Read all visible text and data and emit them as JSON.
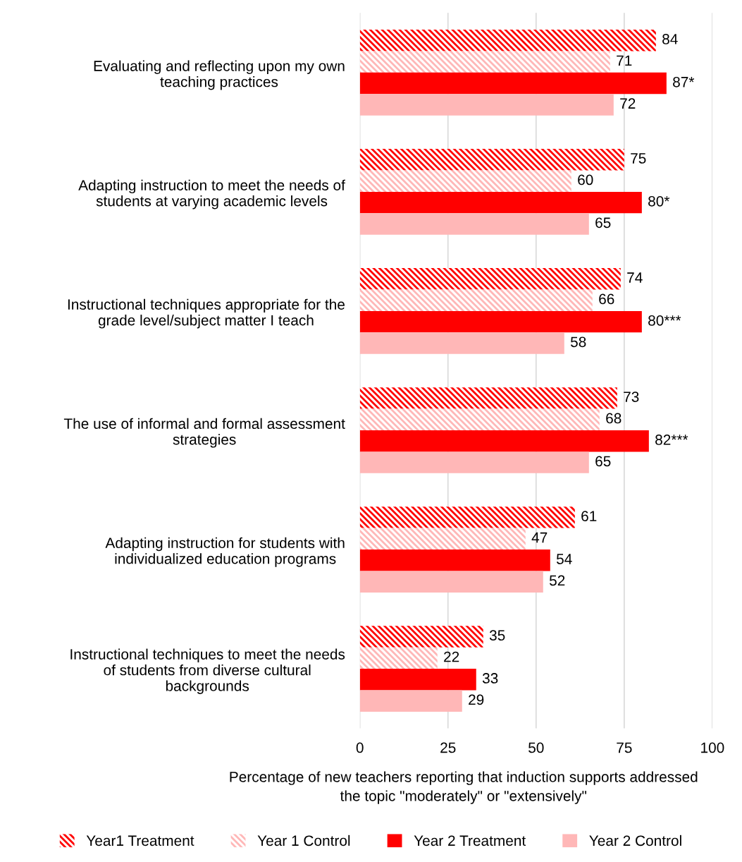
{
  "chart_data": {
    "type": "bar",
    "orientation": "horizontal",
    "categories": [
      "Evaluating and reflecting upon my own\nteaching practices",
      "Adapting instruction to meet the needs of\nstudents at varying academic levels",
      "Instructional techniques appropriate for the\ngrade level/subject matter I teach",
      "The use of informal and formal assessment\nstrategies",
      "Adapting instruction for students with\nindividualized education programs",
      "Instructional techniques to meet the needs\nof students from diverse cultural\nbackgrounds"
    ],
    "series": [
      {
        "name": "Year1 Treatment",
        "color": "#ff0000",
        "values": [
          84,
          75,
          74,
          73,
          61,
          35
        ],
        "value_labels": [
          "84",
          "75",
          "74",
          "73",
          "61",
          "35"
        ]
      },
      {
        "name": "Year 1 Control",
        "color": "#ffb7b7",
        "values": [
          71,
          60,
          66,
          68,
          47,
          22
        ],
        "value_labels": [
          "71",
          "60",
          "66",
          "68",
          "47",
          "22"
        ]
      },
      {
        "name": "Year 2 Treatment",
        "color": "#ff0000",
        "values": [
          87,
          80,
          80,
          82,
          54,
          33
        ],
        "value_labels": [
          "87*",
          "80*",
          "80***",
          "82***",
          "54",
          "33"
        ]
      },
      {
        "name": "Year 2 Control",
        "color": "#ffb7b7",
        "values": [
          72,
          65,
          58,
          65,
          52,
          29
        ],
        "value_labels": [
          "72",
          "65",
          "58",
          "65",
          "52",
          "29"
        ]
      }
    ],
    "xlim": [
      0,
      100
    ],
    "xticks": [
      0,
      25,
      50,
      75,
      100
    ],
    "grid": "x",
    "legend": "bottom",
    "xlabel": "Percentage of new teachers reporting that induction supports addressed\nthe topic \"moderately\" or \"extensively\""
  }
}
